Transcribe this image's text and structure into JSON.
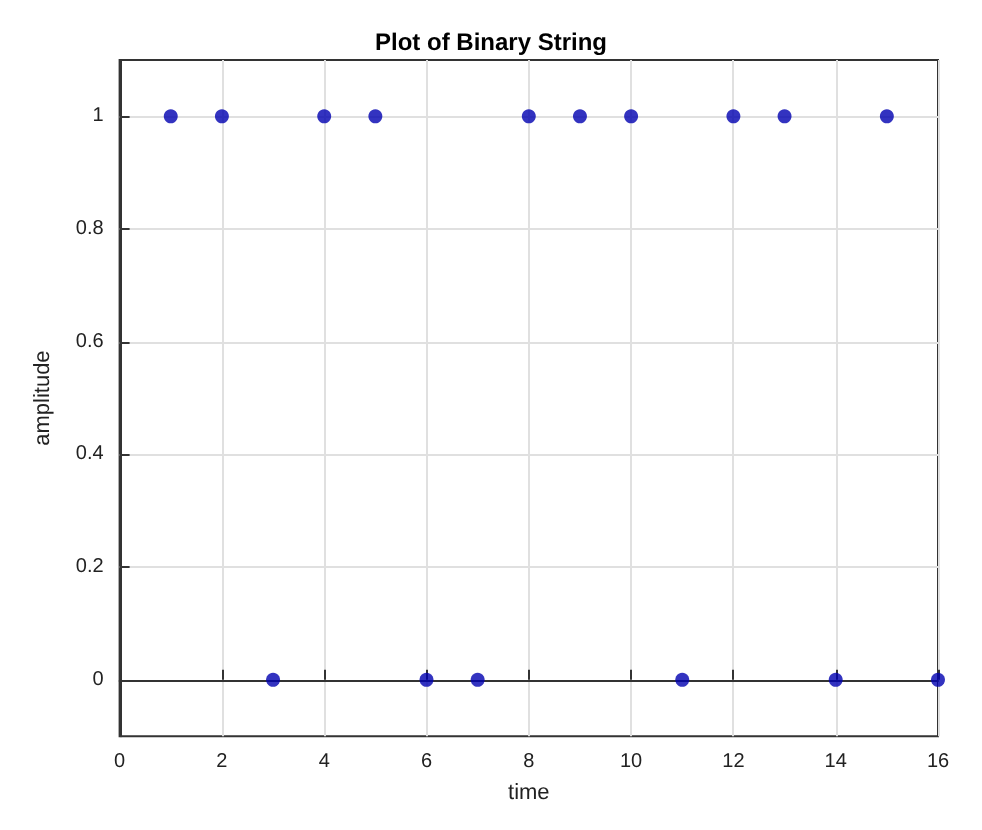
{
  "chart_data": {
    "type": "scatter",
    "title": "Plot of Binary String",
    "xlabel": "time",
    "ylabel": "amplitude",
    "x": [
      1,
      2,
      3,
      4,
      5,
      6,
      7,
      8,
      9,
      10,
      11,
      12,
      13,
      14,
      15,
      16
    ],
    "series": [
      {
        "color": "#0000b0",
        "values": [
          1,
          1,
          0,
          1,
          1,
          0,
          0,
          1,
          1,
          1,
          0,
          1,
          1,
          0,
          1,
          0
        ]
      }
    ],
    "xlim": [
      0,
      16
    ],
    "xticks": [
      0,
      2,
      4,
      6,
      8,
      10,
      12,
      14,
      16
    ],
    "ylim": [
      -0.1,
      1.1
    ],
    "yticks": [
      0,
      0.2,
      0.4,
      0.6,
      0.8,
      1
    ],
    "grid": true,
    "marker": "circle"
  }
}
